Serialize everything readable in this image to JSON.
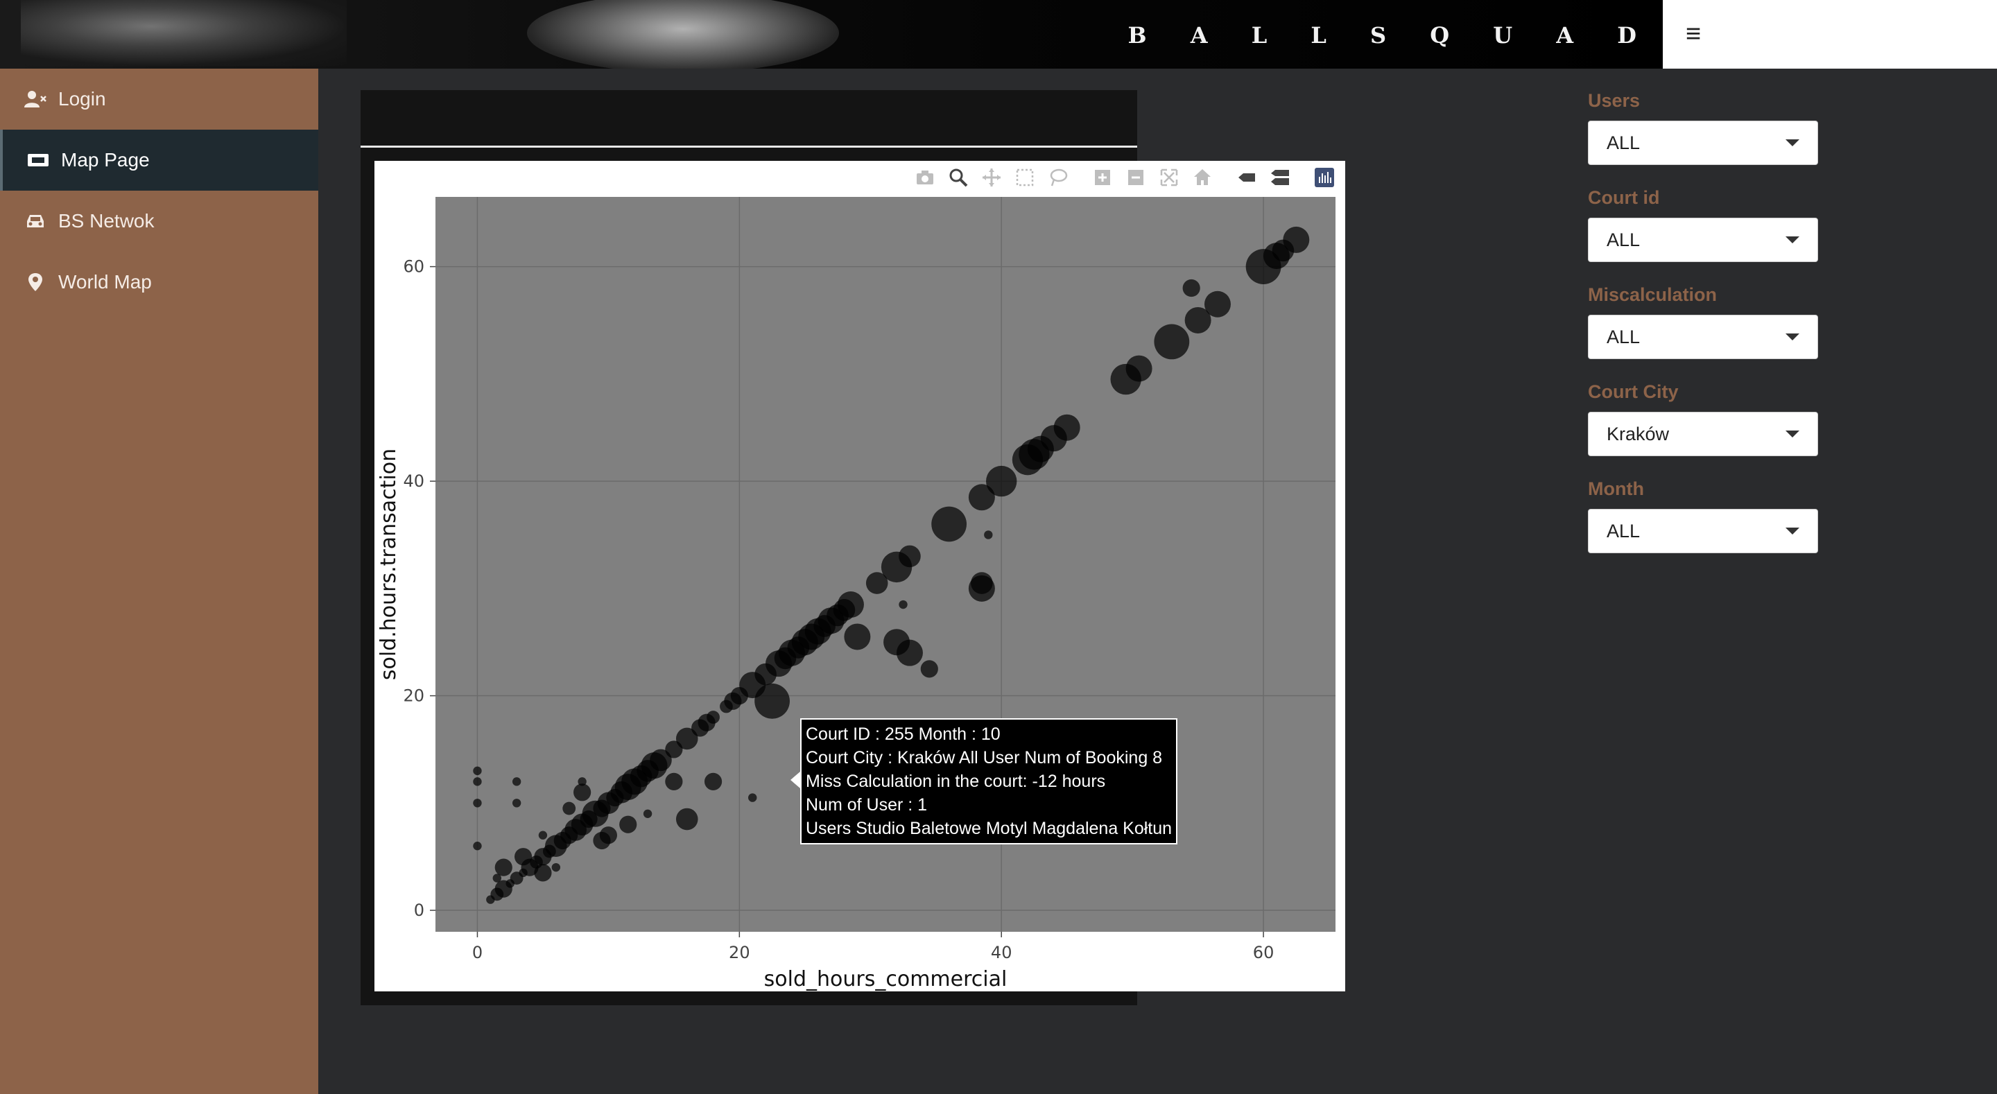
{
  "header": {
    "logo_text": "B A L L S Q U A D",
    "menu_icon": "hamburger-icon"
  },
  "sidebar": {
    "items": [
      {
        "label": "Login",
        "icon": "user-x-icon",
        "active": false
      },
      {
        "label": "Map Page",
        "icon": "ticket-icon",
        "active": true
      },
      {
        "label": "BS Netwok",
        "icon": "car-icon",
        "active": false
      },
      {
        "label": "World Map",
        "icon": "map-pin-icon",
        "active": false
      }
    ]
  },
  "plot": {
    "modebar_icons": [
      "camera-icon",
      "zoom-icon",
      "pan-icon",
      "box-select-icon",
      "lasso-select-icon",
      "zoom-in-icon",
      "zoom-out-icon",
      "autoscale-icon",
      "reset-axes-icon",
      "spike-lines-icon",
      "compare-hover-icon",
      "plotly-logo-icon"
    ],
    "tooltip": {
      "lines": [
        "Court ID : 255 Month : 10",
        "Court City : Kraków All User Num of Booking 8",
        "Miss Calculation in the court: -12  hours",
        "Num of User : 1",
        "Users  Studio Baletowe Motyl Magdalena Kołtun"
      ]
    }
  },
  "chart_data": {
    "type": "scatter",
    "title": "",
    "xlabel": "sold_hours_commercial",
    "ylabel": "sold.hours.transaction",
    "xlim": [
      -3.2,
      65.5
    ],
    "ylim": [
      -2,
      66.5
    ],
    "xticks": [
      0,
      20,
      40,
      60
    ],
    "yticks": [
      0,
      20,
      40,
      60
    ],
    "grid": true,
    "background": "#808080",
    "marker_color": "#000000",
    "points": [
      {
        "x": 1,
        "y": 1,
        "s": 1
      },
      {
        "x": 1.5,
        "y": 1.5,
        "s": 2
      },
      {
        "x": 2,
        "y": 2,
        "s": 3
      },
      {
        "x": 2.5,
        "y": 2.5,
        "s": 1
      },
      {
        "x": 3,
        "y": 3,
        "s": 2
      },
      {
        "x": 3.5,
        "y": 3.5,
        "s": 1
      },
      {
        "x": 4,
        "y": 4,
        "s": 3
      },
      {
        "x": 4.5,
        "y": 4.5,
        "s": 2
      },
      {
        "x": 5,
        "y": 5,
        "s": 3
      },
      {
        "x": 5.5,
        "y": 5.5,
        "s": 2
      },
      {
        "x": 6,
        "y": 6,
        "s": 4
      },
      {
        "x": 6.5,
        "y": 6.5,
        "s": 3
      },
      {
        "x": 7,
        "y": 7,
        "s": 3
      },
      {
        "x": 7.5,
        "y": 7.5,
        "s": 4
      },
      {
        "x": 8,
        "y": 8,
        "s": 4
      },
      {
        "x": 8.5,
        "y": 8.5,
        "s": 3
      },
      {
        "x": 9,
        "y": 9,
        "s": 5
      },
      {
        "x": 9.5,
        "y": 9.5,
        "s": 3
      },
      {
        "x": 10,
        "y": 10,
        "s": 4
      },
      {
        "x": 10.5,
        "y": 10.5,
        "s": 3
      },
      {
        "x": 11,
        "y": 11,
        "s": 4
      },
      {
        "x": 11.5,
        "y": 11.5,
        "s": 5
      },
      {
        "x": 12,
        "y": 12,
        "s": 5
      },
      {
        "x": 12.5,
        "y": 12.5,
        "s": 4
      },
      {
        "x": 13,
        "y": 13,
        "s": 4
      },
      {
        "x": 13.5,
        "y": 13.5,
        "s": 5
      },
      {
        "x": 14,
        "y": 14,
        "s": 4
      },
      {
        "x": 15,
        "y": 15,
        "s": 3
      },
      {
        "x": 16,
        "y": 16,
        "s": 4
      },
      {
        "x": 17,
        "y": 17,
        "s": 3
      },
      {
        "x": 17.5,
        "y": 17.5,
        "s": 3
      },
      {
        "x": 18,
        "y": 18,
        "s": 2
      },
      {
        "x": 19,
        "y": 19,
        "s": 2
      },
      {
        "x": 19.5,
        "y": 19.5,
        "s": 3
      },
      {
        "x": 20,
        "y": 20,
        "s": 3
      },
      {
        "x": 21,
        "y": 21,
        "s": 5
      },
      {
        "x": 22,
        "y": 22,
        "s": 4
      },
      {
        "x": 23,
        "y": 23,
        "s": 5
      },
      {
        "x": 23.5,
        "y": 23.5,
        "s": 4
      },
      {
        "x": 24,
        "y": 24,
        "s": 5
      },
      {
        "x": 24.5,
        "y": 24.5,
        "s": 4
      },
      {
        "x": 25,
        "y": 25,
        "s": 5
      },
      {
        "x": 25.5,
        "y": 25.5,
        "s": 5
      },
      {
        "x": 26,
        "y": 26,
        "s": 5
      },
      {
        "x": 26.5,
        "y": 26.5,
        "s": 4
      },
      {
        "x": 27,
        "y": 27,
        "s": 5
      },
      {
        "x": 27.5,
        "y": 27.5,
        "s": 4
      },
      {
        "x": 28,
        "y": 28,
        "s": 4
      },
      {
        "x": 28.5,
        "y": 28.5,
        "s": 5
      },
      {
        "x": 30.5,
        "y": 30.5,
        "s": 4
      },
      {
        "x": 32,
        "y": 32,
        "s": 6
      },
      {
        "x": 33,
        "y": 33,
        "s": 4
      },
      {
        "x": 36,
        "y": 36,
        "s": 7
      },
      {
        "x": 38.5,
        "y": 38.5,
        "s": 5
      },
      {
        "x": 40,
        "y": 40,
        "s": 6
      },
      {
        "x": 42,
        "y": 42,
        "s": 6
      },
      {
        "x": 42.5,
        "y": 42.5,
        "s": 6
      },
      {
        "x": 43,
        "y": 43,
        "s": 5
      },
      {
        "x": 44,
        "y": 44,
        "s": 5
      },
      {
        "x": 45,
        "y": 45,
        "s": 5
      },
      {
        "x": 49.5,
        "y": 49.5,
        "s": 6
      },
      {
        "x": 50.5,
        "y": 50.5,
        "s": 5
      },
      {
        "x": 53,
        "y": 53,
        "s": 7
      },
      {
        "x": 55,
        "y": 55,
        "s": 5
      },
      {
        "x": 56.5,
        "y": 56.5,
        "s": 5
      },
      {
        "x": 60,
        "y": 60,
        "s": 7
      },
      {
        "x": 61,
        "y": 61,
        "s": 5
      },
      {
        "x": 61.5,
        "y": 61.5,
        "s": 4
      },
      {
        "x": 62.5,
        "y": 62.5,
        "s": 5
      },
      {
        "x": 54.5,
        "y": 58,
        "s": 3
      },
      {
        "x": 39,
        "y": 35,
        "s": 1
      },
      {
        "x": 38.5,
        "y": 30,
        "s": 5
      },
      {
        "x": 38.5,
        "y": 30.5,
        "s": 4
      },
      {
        "x": 32.5,
        "y": 28.5,
        "s": 1
      },
      {
        "x": 29,
        "y": 25.5,
        "s": 5
      },
      {
        "x": 32,
        "y": 25,
        "s": 5
      },
      {
        "x": 33,
        "y": 24,
        "s": 5
      },
      {
        "x": 34.5,
        "y": 22.5,
        "s": 3
      },
      {
        "x": 22.5,
        "y": 19.5,
        "s": 7
      },
      {
        "x": 18,
        "y": 12,
        "s": 3
      },
      {
        "x": 21,
        "y": 10.5,
        "s": 1
      },
      {
        "x": 16,
        "y": 8.5,
        "s": 4
      },
      {
        "x": 13,
        "y": 9,
        "s": 1
      },
      {
        "x": 15,
        "y": 12,
        "s": 3
      },
      {
        "x": 11.5,
        "y": 8,
        "s": 3
      },
      {
        "x": 10,
        "y": 7,
        "s": 3
      },
      {
        "x": 8,
        "y": 11,
        "s": 3
      },
      {
        "x": 8,
        "y": 12,
        "s": 1
      },
      {
        "x": 7,
        "y": 9.5,
        "s": 2
      },
      {
        "x": 5,
        "y": 7,
        "s": 1
      },
      {
        "x": 3,
        "y": 10,
        "s": 1
      },
      {
        "x": 3,
        "y": 12,
        "s": 1
      },
      {
        "x": 0,
        "y": 13,
        "s": 1
      },
      {
        "x": 0,
        "y": 12,
        "s": 1
      },
      {
        "x": 0,
        "y": 10,
        "s": 1
      },
      {
        "x": 0,
        "y": 6,
        "s": 1
      },
      {
        "x": 2,
        "y": 4,
        "s": 3
      },
      {
        "x": 3.5,
        "y": 5,
        "s": 3
      },
      {
        "x": 5,
        "y": 3.5,
        "s": 3
      },
      {
        "x": 6,
        "y": 4,
        "s": 1
      },
      {
        "x": 1.5,
        "y": 3,
        "s": 1
      },
      {
        "x": 9.5,
        "y": 6.5,
        "s": 3
      },
      {
        "x": 25,
        "y": 12,
        "s": 1
      }
    ]
  },
  "filters": [
    {
      "label": "Users",
      "value": "ALL"
    },
    {
      "label": "Court id",
      "value": "ALL"
    },
    {
      "label": "Miscalculation",
      "value": "ALL"
    },
    {
      "label": "Court City",
      "value": "Kraków"
    },
    {
      "label": "Month",
      "value": "ALL"
    }
  ]
}
